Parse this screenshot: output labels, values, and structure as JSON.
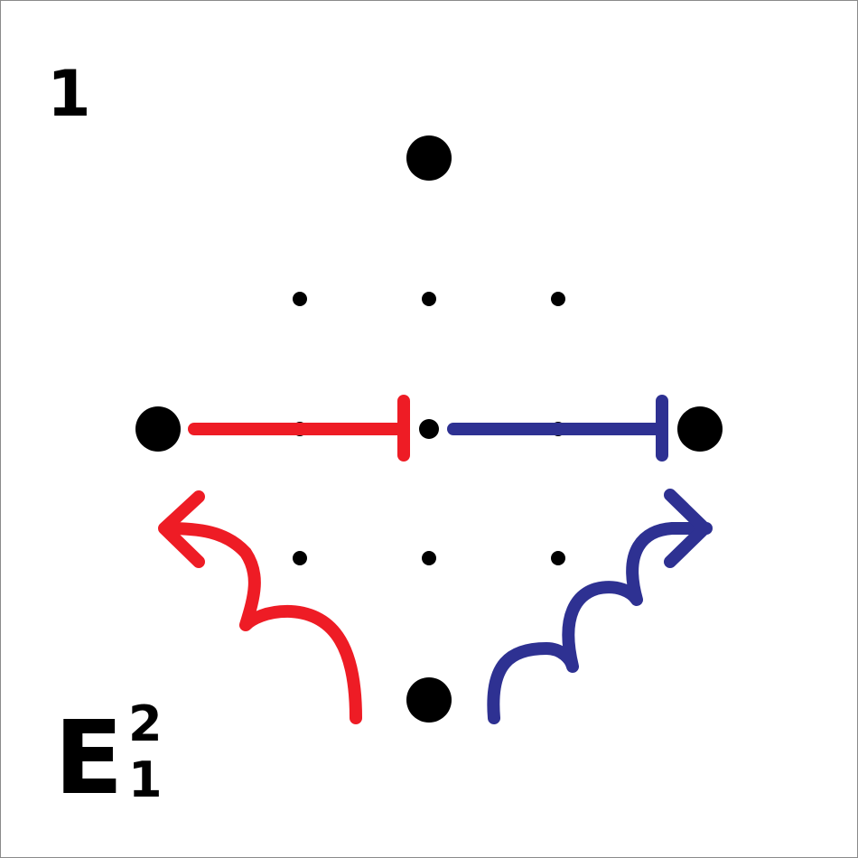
{
  "panel_number": "1",
  "term": {
    "symbol": "E",
    "superscript": "2",
    "subscript": "1"
  },
  "colors": {
    "red": "#ee1c25",
    "blue": "#2e3192",
    "dot": "#000000"
  },
  "icons": {
    "left_bar": "red-bar-with-stop",
    "right_bar": "blue-bar-with-stop",
    "left_arrow": "red-curved-arrow",
    "right_arrow": "blue-wavy-arrow"
  }
}
